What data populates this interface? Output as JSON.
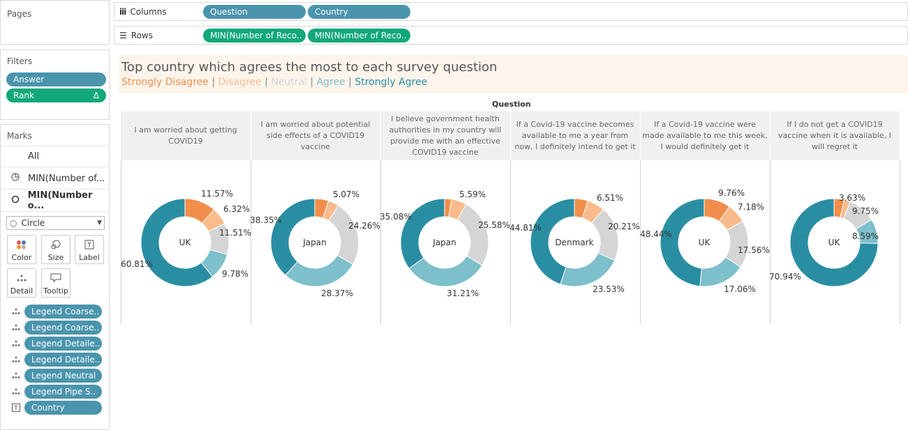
{
  "pages": {
    "title": "Pages"
  },
  "columns": {
    "label": "Columns",
    "pills": [
      "Question",
      "Country"
    ]
  },
  "rows": {
    "label": "Rows",
    "pills": [
      "MIN(Number of Reco..",
      "MIN(Number of Reco.."
    ]
  },
  "filters": {
    "title": "Filters",
    "items": [
      {
        "label": "Answer",
        "color": "#4a94ad"
      },
      {
        "label": "Rank",
        "color": "#11a879",
        "badge": "Δ"
      }
    ]
  },
  "marks": {
    "title": "Marks",
    "rows": [
      {
        "label": "All",
        "icon": "none"
      },
      {
        "label": "MIN(Number of...",
        "icon": "pie-icon"
      },
      {
        "label": "MIN(Number o...",
        "icon": "circle-icon",
        "bold": true
      }
    ],
    "mark_type": "Circle",
    "cards": [
      "Color",
      "Size",
      "Label",
      "Detail",
      "Tooltip"
    ],
    "legend_pills": [
      "Legend Coarse..",
      "Legend Coarse..",
      "Legend Detaile..",
      "Legend Detaile..",
      "Legend Neutral",
      "Legend Pipe S..",
      "Country"
    ],
    "legend_pill_icons": [
      "detail-icon",
      "detail-icon",
      "detail-icon",
      "detail-icon",
      "detail-icon",
      "detail-icon",
      "label-icon"
    ]
  },
  "title": {
    "text": "Top country which agrees the most to each survey question",
    "legend": [
      {
        "label": "Strongly Disagree",
        "color": "#f28e4b"
      },
      {
        "label": "Disagree",
        "color": "#f9bb8b"
      },
      {
        "label": "Neutral",
        "color": "#d5d5d5"
      },
      {
        "label": "Agree",
        "color": "#7dbfca"
      },
      {
        "label": "Strongly Agree",
        "color": "#2a8ea3"
      }
    ],
    "separator": "|"
  },
  "view": {
    "column_header": "Question"
  },
  "questions": [
    {
      "text": "I am worried about getting COVID19",
      "country": "UK",
      "values": [
        11.57,
        6.32,
        11.51,
        9.78,
        60.81
      ]
    },
    {
      "text": "I am worried about potential side effects of a COVID19 vaccine",
      "country": "Japan",
      "values": [
        5.07,
        3.95,
        24.26,
        28.37,
        38.35
      ]
    },
    {
      "text": "I believe government health authorities in my country will provide me with an effective COVID19 vaccine",
      "country": "Japan",
      "values": [
        2.55,
        5.59,
        25.58,
        31.21,
        35.08
      ]
    },
    {
      "text": "If a Covid-19 vaccine becomes available to me a year from now, I definitely intend to get it",
      "country": "Denmark",
      "values": [
        4.94,
        6.51,
        20.21,
        23.53,
        44.81
      ]
    },
    {
      "text": "If a Covid-19 vaccine were made available to me this week, I would definitely get it",
      "country": "UK",
      "values": [
        9.76,
        7.18,
        17.56,
        17.06,
        48.44
      ]
    },
    {
      "text": "If I do not get a COVID19 vaccine when it is available, I will regret it",
      "country": "UK",
      "values": [
        3.63,
        2.09,
        9.75,
        8.59,
        70.94
      ]
    }
  ],
  "labels": [
    [
      "11.57%",
      "6.32%",
      "11.51%",
      "9.78%",
      "60.81%"
    ],
    [
      "5.07%",
      "24.26%",
      "28.37%",
      "38.35%"
    ],
    [
      "5.59%",
      "25.58%",
      "31.21%",
      "35.08%"
    ],
    [
      "6.51%",
      "20.21%",
      "23.53%",
      "44.81%"
    ],
    [
      "9.76%",
      "7.18%",
      "17.56%",
      "17.06%",
      "48.44%"
    ],
    [
      "3.63%",
      "9.75%",
      "8.59%",
      "70.94%"
    ]
  ]
}
